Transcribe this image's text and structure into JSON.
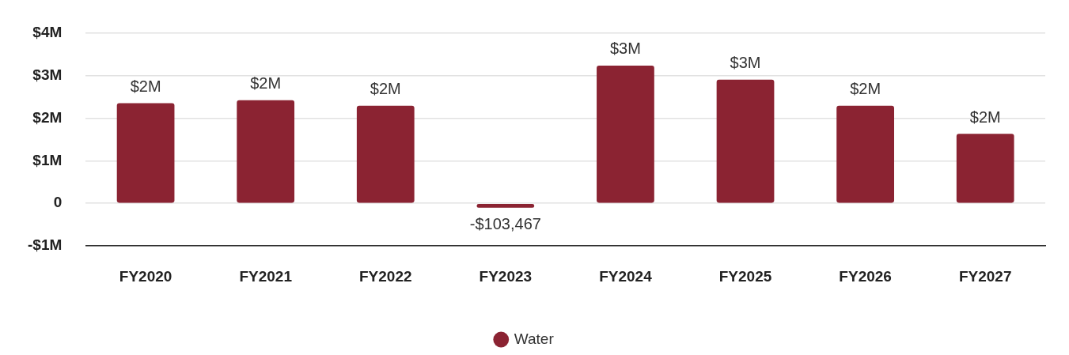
{
  "chart_data": {
    "type": "bar",
    "categories": [
      "FY2020",
      "FY2021",
      "FY2022",
      "FY2023",
      "FY2024",
      "FY2025",
      "FY2026",
      "FY2027"
    ],
    "series": [
      {
        "name": "Water",
        "color": "#8b2332",
        "values": [
          2350000,
          2420000,
          2290000,
          -103467,
          3230000,
          2900000,
          2290000,
          1630000
        ],
        "value_labels": [
          "$2M",
          "$2M",
          "$2M",
          "-$103,467",
          "$3M",
          "$3M",
          "$2M",
          "$2M"
        ]
      }
    ],
    "ylim": [
      -1000000,
      4000000
    ],
    "yticks": [
      {
        "value": -1000000,
        "label": "-$1M"
      },
      {
        "value": 0,
        "label": "0"
      },
      {
        "value": 1000000,
        "label": "$1M"
      },
      {
        "value": 2000000,
        "label": "$2M"
      },
      {
        "value": 3000000,
        "label": "$3M"
      },
      {
        "value": 4000000,
        "label": "$4M"
      }
    ],
    "grid": "y",
    "legend": "bottom",
    "marker": "circle"
  }
}
